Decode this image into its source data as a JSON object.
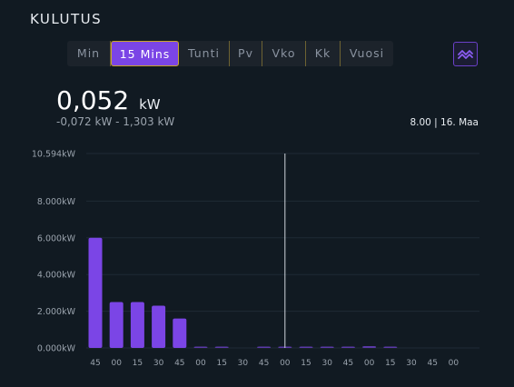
{
  "header": {
    "title": "KULUTUS"
  },
  "tabs": [
    {
      "label": "Min",
      "active": false
    },
    {
      "label": "15 Mins",
      "active": true
    },
    {
      "label": "Tunti",
      "active": false
    },
    {
      "label": "Pv",
      "active": false
    },
    {
      "label": "Vko",
      "active": false
    },
    {
      "label": "Kk",
      "active": false
    },
    {
      "label": "Vuosi",
      "active": false
    }
  ],
  "chart_toggle_icon": "double-chevron-up-icon",
  "summary": {
    "value": "0,052",
    "unit": "kW",
    "range": "-0,072 kW - 1,303 kW",
    "time": "8.00 | 16. Maa"
  },
  "colors": {
    "accent": "#7b45e6",
    "background": "#111a22"
  },
  "chart_data": {
    "type": "bar",
    "title": "",
    "xlabel": "",
    "ylabel": "",
    "ylim": [
      0,
      10.594
    ],
    "yticks": [
      "10.594kW",
      "8.000kW",
      "6.000kW",
      "4.000kW",
      "2.000kW",
      "0.000kW"
    ],
    "ytick_values": [
      10.594,
      8,
      6,
      4,
      2,
      0
    ],
    "categories": [
      "45",
      "00",
      "15",
      "30",
      "45",
      "00",
      "15",
      "30",
      "45",
      "00",
      "15",
      "30",
      "45",
      "00",
      "15",
      "30",
      "45",
      "00"
    ],
    "values": [
      6.0,
      2.5,
      2.5,
      2.3,
      1.6,
      0.05,
      0.05,
      0.0,
      0.05,
      0.05,
      0.05,
      0.05,
      0.05,
      0.1,
      0.03,
      0.0,
      0.0,
      0.0
    ],
    "cursor_index": 9,
    "grid": true
  }
}
